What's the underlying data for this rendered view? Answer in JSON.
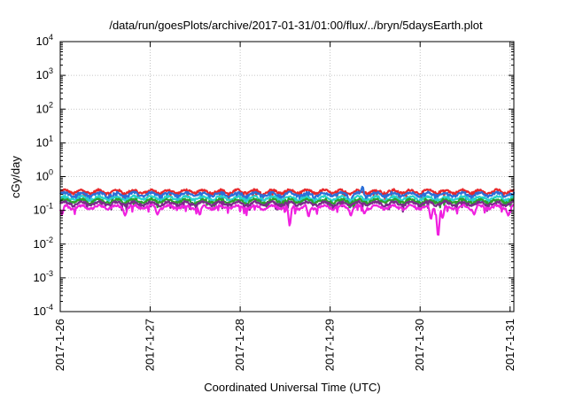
{
  "chart_data": {
    "type": "line",
    "title": "/data/run/goesPlots/archive/2017-01-31/01:00/flux/../bryn/5daysEarth.plot",
    "xlabel": "Coordinated Universal Time (UTC)",
    "ylabel": "cGy/day",
    "yscale": "log",
    "ylim": [
      0.0001,
      10000
    ],
    "yticks": [
      {
        "value": 10000,
        "base": "10",
        "exp": "4"
      },
      {
        "value": 1000,
        "base": "10",
        "exp": "3"
      },
      {
        "value": 100,
        "base": "10",
        "exp": "2"
      },
      {
        "value": 10,
        "base": "10",
        "exp": "1"
      },
      {
        "value": 1,
        "base": "10",
        "exp": "0"
      },
      {
        "value": 0.1,
        "base": "10",
        "exp": "-1"
      },
      {
        "value": 0.01,
        "base": "10",
        "exp": "-2"
      },
      {
        "value": 0.001,
        "base": "10",
        "exp": "-3"
      },
      {
        "value": 0.0001,
        "base": "10",
        "exp": "-4"
      }
    ],
    "xlim": [
      "2017-01-26T00:00",
      "2017-01-31T01:00"
    ],
    "xticks": [
      "2017-1-26",
      "2017-1-27",
      "2017-1-28",
      "2017-1-29",
      "2017-1-30",
      "2017-1-31"
    ],
    "grid": true,
    "series": [
      {
        "color": "#e8272a",
        "baseline": 0.36,
        "spikes": []
      },
      {
        "color": "#2b6fd8",
        "baseline": 0.3,
        "spikes": [
          [
            3.22,
            0.12
          ],
          [
            3.36,
            0.5
          ]
        ]
      },
      {
        "color": "#27d2cc",
        "baseline": 0.23,
        "spikes": []
      },
      {
        "color": "#2ca02c",
        "baseline": 0.19,
        "spikes": []
      },
      {
        "color": "#7b2a8a",
        "baseline": 0.16,
        "spikes": []
      },
      {
        "color": "#f020e0",
        "baseline": 0.125,
        "spikes": [
          [
            0.02,
            0.075
          ],
          [
            0.72,
            0.07
          ],
          [
            1.08,
            0.075
          ],
          [
            1.55,
            0.075
          ],
          [
            2.55,
            0.035
          ],
          [
            2.76,
            0.065
          ],
          [
            3.23,
            0.07
          ],
          [
            3.38,
            0.08
          ],
          [
            4.12,
            0.055
          ],
          [
            4.2,
            0.017
          ],
          [
            4.25,
            0.06
          ],
          [
            4.6,
            0.075
          ],
          [
            4.98,
            0.07
          ]
        ]
      }
    ]
  }
}
